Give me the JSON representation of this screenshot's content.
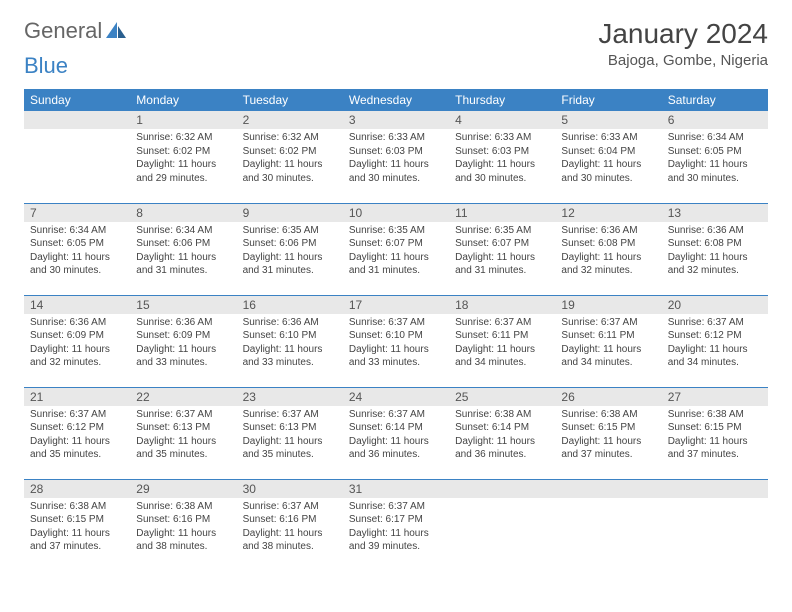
{
  "logo": {
    "text1": "General",
    "text2": "Blue"
  },
  "title": "January 2024",
  "location": "Bajoga, Gombe, Nigeria",
  "colors": {
    "header_bg": "#3b82c4",
    "header_text": "#ffffff",
    "daynum_bg": "#e8e8e8",
    "border": "#3b82c4",
    "logo_blue": "#3b82c4"
  },
  "weekdays": [
    "Sunday",
    "Monday",
    "Tuesday",
    "Wednesday",
    "Thursday",
    "Friday",
    "Saturday"
  ],
  "weeks": [
    [
      {
        "n": "",
        "sr": "",
        "ss": "",
        "d1": "",
        "d2": ""
      },
      {
        "n": "1",
        "sr": "Sunrise: 6:32 AM",
        "ss": "Sunset: 6:02 PM",
        "d1": "Daylight: 11 hours",
        "d2": "and 29 minutes."
      },
      {
        "n": "2",
        "sr": "Sunrise: 6:32 AM",
        "ss": "Sunset: 6:02 PM",
        "d1": "Daylight: 11 hours",
        "d2": "and 30 minutes."
      },
      {
        "n": "3",
        "sr": "Sunrise: 6:33 AM",
        "ss": "Sunset: 6:03 PM",
        "d1": "Daylight: 11 hours",
        "d2": "and 30 minutes."
      },
      {
        "n": "4",
        "sr": "Sunrise: 6:33 AM",
        "ss": "Sunset: 6:03 PM",
        "d1": "Daylight: 11 hours",
        "d2": "and 30 minutes."
      },
      {
        "n": "5",
        "sr": "Sunrise: 6:33 AM",
        "ss": "Sunset: 6:04 PM",
        "d1": "Daylight: 11 hours",
        "d2": "and 30 minutes."
      },
      {
        "n": "6",
        "sr": "Sunrise: 6:34 AM",
        "ss": "Sunset: 6:05 PM",
        "d1": "Daylight: 11 hours",
        "d2": "and 30 minutes."
      }
    ],
    [
      {
        "n": "7",
        "sr": "Sunrise: 6:34 AM",
        "ss": "Sunset: 6:05 PM",
        "d1": "Daylight: 11 hours",
        "d2": "and 30 minutes."
      },
      {
        "n": "8",
        "sr": "Sunrise: 6:34 AM",
        "ss": "Sunset: 6:06 PM",
        "d1": "Daylight: 11 hours",
        "d2": "and 31 minutes."
      },
      {
        "n": "9",
        "sr": "Sunrise: 6:35 AM",
        "ss": "Sunset: 6:06 PM",
        "d1": "Daylight: 11 hours",
        "d2": "and 31 minutes."
      },
      {
        "n": "10",
        "sr": "Sunrise: 6:35 AM",
        "ss": "Sunset: 6:07 PM",
        "d1": "Daylight: 11 hours",
        "d2": "and 31 minutes."
      },
      {
        "n": "11",
        "sr": "Sunrise: 6:35 AM",
        "ss": "Sunset: 6:07 PM",
        "d1": "Daylight: 11 hours",
        "d2": "and 31 minutes."
      },
      {
        "n": "12",
        "sr": "Sunrise: 6:36 AM",
        "ss": "Sunset: 6:08 PM",
        "d1": "Daylight: 11 hours",
        "d2": "and 32 minutes."
      },
      {
        "n": "13",
        "sr": "Sunrise: 6:36 AM",
        "ss": "Sunset: 6:08 PM",
        "d1": "Daylight: 11 hours",
        "d2": "and 32 minutes."
      }
    ],
    [
      {
        "n": "14",
        "sr": "Sunrise: 6:36 AM",
        "ss": "Sunset: 6:09 PM",
        "d1": "Daylight: 11 hours",
        "d2": "and 32 minutes."
      },
      {
        "n": "15",
        "sr": "Sunrise: 6:36 AM",
        "ss": "Sunset: 6:09 PM",
        "d1": "Daylight: 11 hours",
        "d2": "and 33 minutes."
      },
      {
        "n": "16",
        "sr": "Sunrise: 6:36 AM",
        "ss": "Sunset: 6:10 PM",
        "d1": "Daylight: 11 hours",
        "d2": "and 33 minutes."
      },
      {
        "n": "17",
        "sr": "Sunrise: 6:37 AM",
        "ss": "Sunset: 6:10 PM",
        "d1": "Daylight: 11 hours",
        "d2": "and 33 minutes."
      },
      {
        "n": "18",
        "sr": "Sunrise: 6:37 AM",
        "ss": "Sunset: 6:11 PM",
        "d1": "Daylight: 11 hours",
        "d2": "and 34 minutes."
      },
      {
        "n": "19",
        "sr": "Sunrise: 6:37 AM",
        "ss": "Sunset: 6:11 PM",
        "d1": "Daylight: 11 hours",
        "d2": "and 34 minutes."
      },
      {
        "n": "20",
        "sr": "Sunrise: 6:37 AM",
        "ss": "Sunset: 6:12 PM",
        "d1": "Daylight: 11 hours",
        "d2": "and 34 minutes."
      }
    ],
    [
      {
        "n": "21",
        "sr": "Sunrise: 6:37 AM",
        "ss": "Sunset: 6:12 PM",
        "d1": "Daylight: 11 hours",
        "d2": "and 35 minutes."
      },
      {
        "n": "22",
        "sr": "Sunrise: 6:37 AM",
        "ss": "Sunset: 6:13 PM",
        "d1": "Daylight: 11 hours",
        "d2": "and 35 minutes."
      },
      {
        "n": "23",
        "sr": "Sunrise: 6:37 AM",
        "ss": "Sunset: 6:13 PM",
        "d1": "Daylight: 11 hours",
        "d2": "and 35 minutes."
      },
      {
        "n": "24",
        "sr": "Sunrise: 6:37 AM",
        "ss": "Sunset: 6:14 PM",
        "d1": "Daylight: 11 hours",
        "d2": "and 36 minutes."
      },
      {
        "n": "25",
        "sr": "Sunrise: 6:38 AM",
        "ss": "Sunset: 6:14 PM",
        "d1": "Daylight: 11 hours",
        "d2": "and 36 minutes."
      },
      {
        "n": "26",
        "sr": "Sunrise: 6:38 AM",
        "ss": "Sunset: 6:15 PM",
        "d1": "Daylight: 11 hours",
        "d2": "and 37 minutes."
      },
      {
        "n": "27",
        "sr": "Sunrise: 6:38 AM",
        "ss": "Sunset: 6:15 PM",
        "d1": "Daylight: 11 hours",
        "d2": "and 37 minutes."
      }
    ],
    [
      {
        "n": "28",
        "sr": "Sunrise: 6:38 AM",
        "ss": "Sunset: 6:15 PM",
        "d1": "Daylight: 11 hours",
        "d2": "and 37 minutes."
      },
      {
        "n": "29",
        "sr": "Sunrise: 6:38 AM",
        "ss": "Sunset: 6:16 PM",
        "d1": "Daylight: 11 hours",
        "d2": "and 38 minutes."
      },
      {
        "n": "30",
        "sr": "Sunrise: 6:37 AM",
        "ss": "Sunset: 6:16 PM",
        "d1": "Daylight: 11 hours",
        "d2": "and 38 minutes."
      },
      {
        "n": "31",
        "sr": "Sunrise: 6:37 AM",
        "ss": "Sunset: 6:17 PM",
        "d1": "Daylight: 11 hours",
        "d2": "and 39 minutes."
      },
      {
        "n": "",
        "sr": "",
        "ss": "",
        "d1": "",
        "d2": ""
      },
      {
        "n": "",
        "sr": "",
        "ss": "",
        "d1": "",
        "d2": ""
      },
      {
        "n": "",
        "sr": "",
        "ss": "",
        "d1": "",
        "d2": ""
      }
    ]
  ]
}
